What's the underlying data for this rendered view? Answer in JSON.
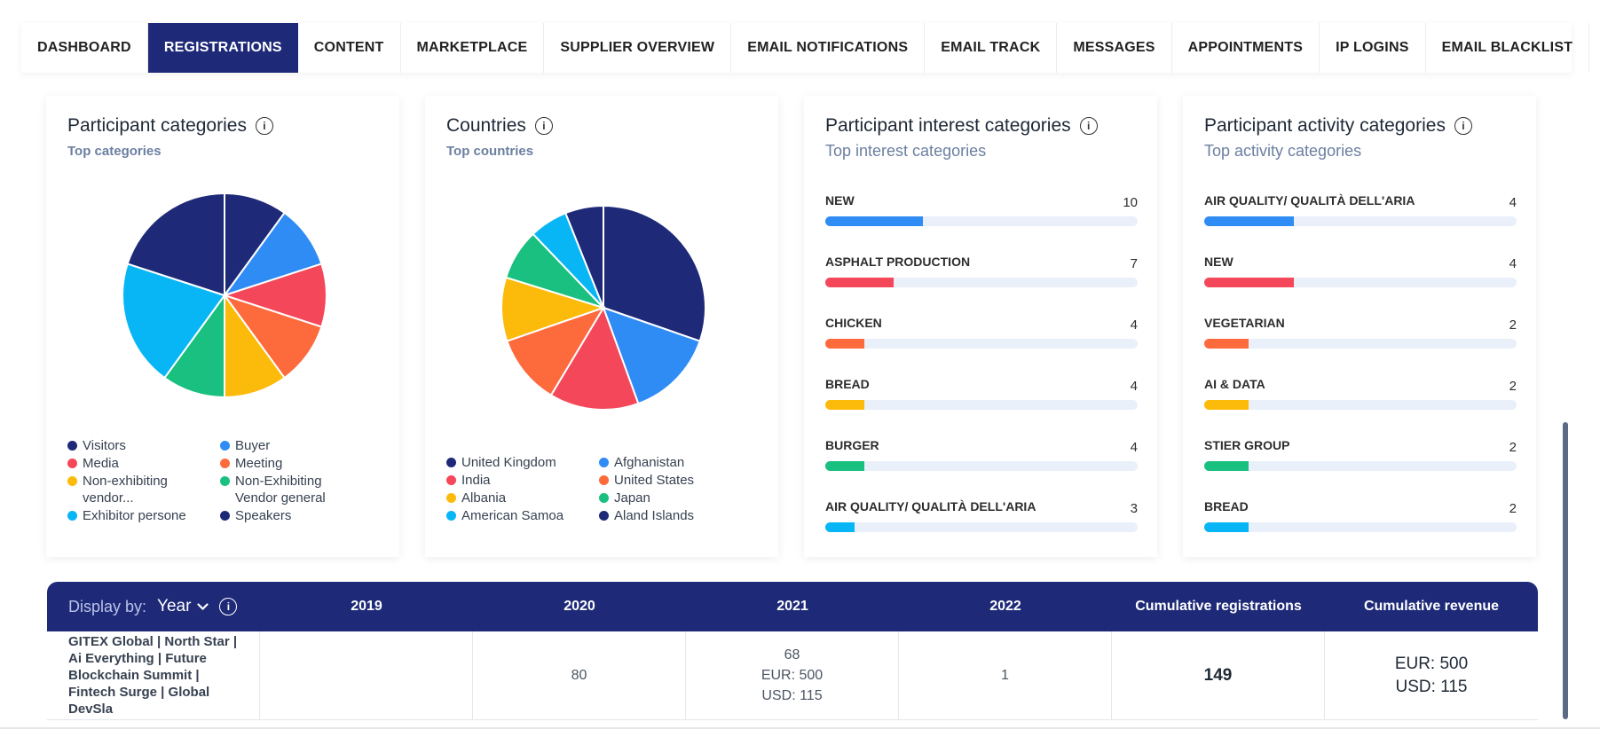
{
  "nav": {
    "tabs": [
      {
        "label": "DASHBOARD",
        "active": false
      },
      {
        "label": "REGISTRATIONS",
        "active": true
      },
      {
        "label": "CONTENT",
        "active": false
      },
      {
        "label": "MARKETPLACE",
        "active": false
      },
      {
        "label": "SUPPLIER OVERVIEW",
        "active": false
      },
      {
        "label": "EMAIL NOTIFICATIONS",
        "active": false
      },
      {
        "label": "EMAIL TRACK",
        "active": false
      },
      {
        "label": "MESSAGES",
        "active": false
      },
      {
        "label": "APPOINTMENTS",
        "active": false
      },
      {
        "label": "IP LOGINS",
        "active": false
      },
      {
        "label": "EMAIL BLACKLIST",
        "active": false
      }
    ]
  },
  "participant_categories": {
    "title": "Participant categories",
    "subtitle": "Top categories",
    "legend": [
      {
        "label": "Visitors",
        "color": "#1e2a78"
      },
      {
        "label": "Buyer",
        "color": "#2f8cf5"
      },
      {
        "label": "Media",
        "color": "#f5475a"
      },
      {
        "label": "Meeting",
        "color": "#fd6a3c"
      },
      {
        "label": "Non-exhibiting vendor...",
        "color": "#fcba0a"
      },
      {
        "label": "Non-Exhibiting Vendor general",
        "color": "#19c080"
      },
      {
        "label": "Exhibitor persone",
        "color": "#08b6f5"
      },
      {
        "label": "Speakers",
        "color": "#1e2a78"
      }
    ]
  },
  "countries": {
    "title": "Countries",
    "subtitle": "Top countries",
    "legend": [
      {
        "label": "United Kingdom",
        "color": "#1e2a78"
      },
      {
        "label": "Afghanistan",
        "color": "#2f8cf5"
      },
      {
        "label": "India",
        "color": "#f5475a"
      },
      {
        "label": "United States",
        "color": "#fd6a3c"
      },
      {
        "label": "Albania",
        "color": "#fcba0a"
      },
      {
        "label": "Japan",
        "color": "#19c080"
      },
      {
        "label": "American Samoa",
        "color": "#08b6f5"
      },
      {
        "label": "Aland Islands",
        "color": "#1e2a78"
      }
    ]
  },
  "interest_categories": {
    "title": "Participant interest categories",
    "subtitle": "Top interest categories",
    "max": 32,
    "items": [
      {
        "label": "NEW",
        "count": "10",
        "value": 10,
        "color": "#2f8cf5"
      },
      {
        "label": "ASPHALT PRODUCTION",
        "count": "7",
        "value": 7,
        "color": "#f5475a"
      },
      {
        "label": "CHICKEN",
        "count": "4",
        "value": 4,
        "color": "#fd6a3c"
      },
      {
        "label": "BREAD",
        "count": "4",
        "value": 4,
        "color": "#fcba0a"
      },
      {
        "label": "BURGER",
        "count": "4",
        "value": 4,
        "color": "#19c080"
      },
      {
        "label": "AIR QUALITY/ QUALITÀ DELL'ARIA",
        "count": "3",
        "value": 3,
        "color": "#08b6f5"
      }
    ]
  },
  "activity_categories": {
    "title": "Participant activity categories",
    "subtitle": "Top activity categories",
    "max": 14,
    "items": [
      {
        "label": "AIR QUALITY/ QUALITÀ DELL'ARIA",
        "count": "4",
        "value": 4,
        "color": "#2f8cf5"
      },
      {
        "label": "NEW",
        "count": "4",
        "value": 4,
        "color": "#f5475a"
      },
      {
        "label": "VEGETARIAN",
        "count": "2",
        "value": 2,
        "color": "#fd6a3c"
      },
      {
        "label": "AI & DATA",
        "count": "2",
        "value": 2,
        "color": "#fcba0a"
      },
      {
        "label": "STIER GROUP",
        "count": "2",
        "value": 2,
        "color": "#19c080"
      },
      {
        "label": "BREAD",
        "count": "2",
        "value": 2,
        "color": "#08b6f5"
      }
    ]
  },
  "table": {
    "display_by_label": "Display by:",
    "display_by_value": "Year",
    "headers": [
      "2019",
      "2020",
      "2021",
      "2022",
      "Cumulative registrations",
      "Cumulative revenue"
    ],
    "row": {
      "event": "GITEX Global | North Star | Ai Everything | Future Blockchain Summit | Fintech Surge | Global DevSla",
      "y2019": "",
      "y2020": "80",
      "y2021_count": "68",
      "y2021_eur": "EUR: 500",
      "y2021_usd": "USD: 115",
      "y2022": "1",
      "cumulative_registrations": "149",
      "revenue_eur": "EUR: 500",
      "revenue_usd": "USD: 115"
    }
  },
  "chart_data": [
    {
      "type": "pie",
      "title": "Participant categories",
      "categories": [
        "Visitors",
        "Buyer",
        "Media",
        "Meeting",
        "Non-exhibiting vendor...",
        "Non-Exhibiting Vendor general",
        "Exhibitor persone",
        "Speakers"
      ],
      "values": [
        9,
        9,
        9,
        9,
        9,
        9,
        18,
        18
      ],
      "colors": [
        "#1e2a78",
        "#2f8cf5",
        "#f5475a",
        "#fd6a3c",
        "#fcba0a",
        "#19c080",
        "#08b6f5",
        "#1e2a78"
      ]
    },
    {
      "type": "pie",
      "title": "Countries",
      "categories": [
        "United Kingdom",
        "Afghanistan",
        "India",
        "United States",
        "Albania",
        "Japan",
        "American Samoa",
        "Aland Islands"
      ],
      "values": [
        30,
        14,
        14,
        11,
        10,
        8,
        6,
        6
      ],
      "colors": [
        "#1e2a78",
        "#2f8cf5",
        "#f5475a",
        "#fd6a3c",
        "#fcba0a",
        "#19c080",
        "#08b6f5",
        "#1e2a78"
      ]
    }
  ]
}
